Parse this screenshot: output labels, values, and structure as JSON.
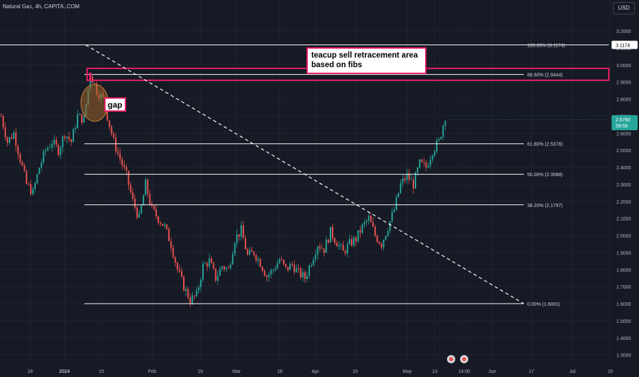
{
  "header": {
    "title": "Natural Gas, 4h, CAPITALCOM",
    "currency": "USD"
  },
  "colors": {
    "background": "#161a25",
    "up": "#26a69a",
    "down": "#ef5350",
    "fib_line": "#ffffff",
    "zone": "#e91e63",
    "grid": "#1f2430"
  },
  "chart_data": {
    "type": "candlestick",
    "title": "Natural Gas, 4h, CAPITALCOM",
    "x_tick_labels": [
      "18",
      "2024",
      "15",
      "Feb",
      "19",
      "Mar",
      "18",
      "Apr",
      "15",
      "May",
      "13",
      "14:00",
      "Jun",
      "17",
      "Jul",
      "15"
    ],
    "y_tick_labels": [
      "3.2000",
      "3.1000",
      "3.0000",
      "2.9000",
      "2.8000",
      "2.7000",
      "2.6000",
      "2.5000",
      "2.4000",
      "2.3000",
      "2.2000",
      "2.1000",
      "2.0000",
      "1.9000",
      "1.8000",
      "1.7000",
      "1.6000",
      "1.5000",
      "1.4000",
      "1.3000"
    ],
    "ylim": [
      1.26,
      3.25
    ],
    "price_path": [
      [
        0,
        2.7
      ],
      [
        3,
        2.55
      ],
      [
        6,
        2.6
      ],
      [
        9,
        2.45
      ],
      [
        12,
        2.3
      ],
      [
        15,
        2.25
      ],
      [
        18,
        2.4
      ],
      [
        21,
        2.5
      ],
      [
        24,
        2.55
      ],
      [
        27,
        2.5
      ],
      [
        30,
        2.6
      ],
      [
        33,
        2.55
      ],
      [
        36,
        2.7
      ],
      [
        39,
        2.68
      ],
      [
        42,
        2.95
      ],
      [
        45,
        2.85
      ],
      [
        48,
        2.8
      ],
      [
        50,
        2.7
      ],
      [
        53,
        2.55
      ],
      [
        56,
        2.45
      ],
      [
        59,
        2.35
      ],
      [
        62,
        2.2
      ],
      [
        65,
        2.1
      ],
      [
        68,
        2.3
      ],
      [
        71,
        2.15
      ],
      [
        74,
        2.1
      ],
      [
        77,
        2.05
      ],
      [
        80,
        1.95
      ],
      [
        83,
        1.8
      ],
      [
        86,
        1.7
      ],
      [
        89,
        1.62
      ],
      [
        92,
        1.65
      ],
      [
        95,
        1.82
      ],
      [
        98,
        1.85
      ],
      [
        101,
        1.75
      ],
      [
        104,
        1.82
      ],
      [
        107,
        1.8
      ],
      [
        110,
        1.98
      ],
      [
        113,
        2.03
      ],
      [
        116,
        1.88
      ],
      [
        119,
        1.9
      ],
      [
        122,
        1.84
      ],
      [
        125,
        1.76
      ],
      [
        128,
        1.8
      ],
      [
        131,
        1.86
      ],
      [
        134,
        1.8
      ],
      [
        137,
        1.83
      ],
      [
        140,
        1.78
      ],
      [
        143,
        1.75
      ],
      [
        146,
        1.85
      ],
      [
        149,
        1.95
      ],
      [
        152,
        1.92
      ],
      [
        155,
        2.02
      ],
      [
        158,
        1.96
      ],
      [
        161,
        1.9
      ],
      [
        164,
        1.95
      ],
      [
        167,
        1.98
      ],
      [
        170,
        2.05
      ],
      [
        173,
        2.1
      ],
      [
        176,
        2.0
      ],
      [
        179,
        1.95
      ],
      [
        182,
        2.05
      ],
      [
        185,
        2.15
      ],
      [
        188,
        2.3
      ],
      [
        191,
        2.35
      ],
      [
        194,
        2.3
      ],
      [
        197,
        2.42
      ],
      [
        200,
        2.4
      ],
      [
        203,
        2.5
      ],
      [
        206,
        2.55
      ],
      [
        209,
        2.7
      ]
    ],
    "last_price": "2.6780",
    "countdown": "59:59",
    "fib_levels": [
      {
        "label": "100.00% (3.1174)",
        "value": 3.1174
      },
      {
        "label": "88.60% (2.9444)",
        "value": 2.9444
      },
      {
        "label": "61.80% (2.5378)",
        "value": 2.5378
      },
      {
        "label": "50.00% (2.3588)",
        "value": 2.3588
      },
      {
        "label": "38.20% (2.1797)",
        "value": 2.1797
      },
      {
        "label": "0.00% (1.6001)",
        "value": 1.6001
      }
    ],
    "zone": {
      "low": 2.91,
      "high": 2.98
    },
    "high_marker": "3.1174",
    "annotations": [
      {
        "text": "teacup sell retracement area\nbased on fibs"
      },
      {
        "text": "gap"
      }
    ],
    "grid": true
  }
}
